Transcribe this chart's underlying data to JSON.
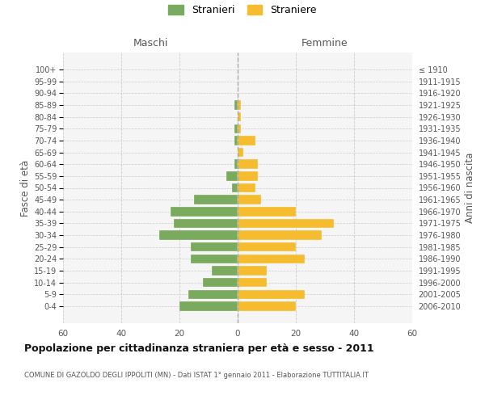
{
  "age_groups": [
    "0-4",
    "5-9",
    "10-14",
    "15-19",
    "20-24",
    "25-29",
    "30-34",
    "35-39",
    "40-44",
    "45-49",
    "50-54",
    "55-59",
    "60-64",
    "65-69",
    "70-74",
    "75-79",
    "80-84",
    "85-89",
    "90-94",
    "95-99",
    "100+"
  ],
  "birth_years": [
    "2006-2010",
    "2001-2005",
    "1996-2000",
    "1991-1995",
    "1986-1990",
    "1981-1985",
    "1976-1980",
    "1971-1975",
    "1966-1970",
    "1961-1965",
    "1956-1960",
    "1951-1955",
    "1946-1950",
    "1941-1945",
    "1936-1940",
    "1931-1935",
    "1926-1930",
    "1921-1925",
    "1916-1920",
    "1911-1915",
    "≤ 1910"
  ],
  "maschi": [
    20,
    17,
    12,
    9,
    16,
    16,
    27,
    22,
    23,
    15,
    2,
    4,
    1,
    0,
    1,
    1,
    0,
    1,
    0,
    0,
    0
  ],
  "femmine": [
    20,
    23,
    10,
    10,
    23,
    20,
    29,
    33,
    20,
    8,
    6,
    7,
    7,
    2,
    6,
    1,
    1,
    1,
    0,
    0,
    0
  ],
  "color_maschi": "#7aaa5e",
  "color_femmine": "#f5bc2f",
  "color_grid": "#cccccc",
  "color_dashed": "#aaaaaa",
  "title": "Popolazione per cittadinanza straniera per età e sesso - 2011",
  "subtitle": "COMUNE DI GAZOLDO DEGLI IPPOLITI (MN) - Dati ISTAT 1° gennaio 2011 - Elaborazione TUTTITALIA.IT",
  "label_maschi": "Maschi",
  "label_femmine": "Femmine",
  "ylabel_left": "Fasce di età",
  "ylabel_right": "Anni di nascita",
  "legend_maschi": "Stranieri",
  "legend_femmine": "Straniere",
  "xlim": 60,
  "background_color": "#ffffff",
  "plot_bg_color": "#f5f5f5"
}
